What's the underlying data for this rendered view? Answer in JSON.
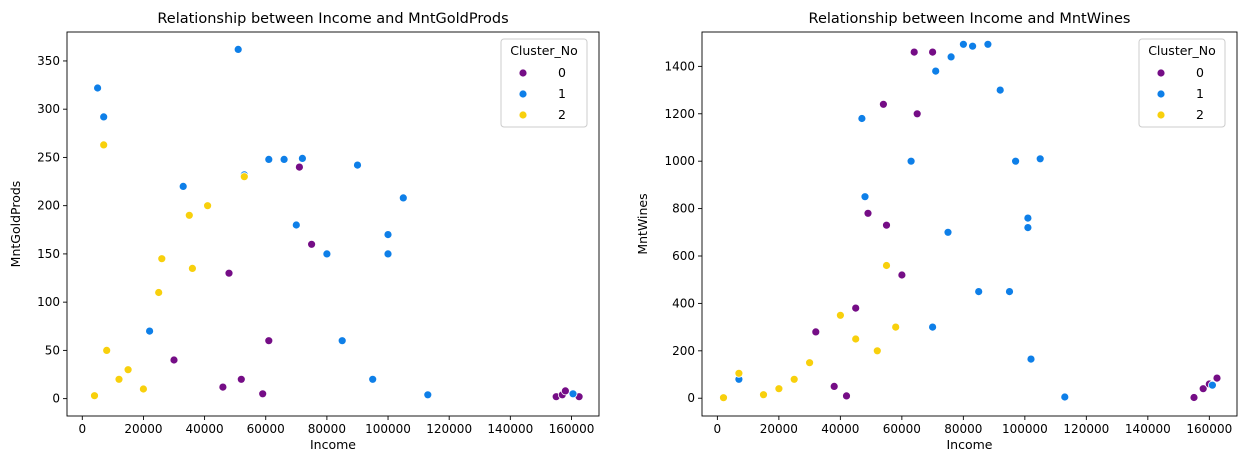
{
  "chart_data": [
    {
      "type": "scatter",
      "title": "Relationship between Income and MntGoldProds",
      "xlabel": "Income",
      "ylabel": "MntGoldProds",
      "xlim": [
        -5000,
        169000
      ],
      "ylim": [
        -18,
        380
      ],
      "xticks": [
        0,
        20000,
        40000,
        60000,
        80000,
        100000,
        120000,
        140000,
        160000
      ],
      "yticks": [
        0,
        50,
        100,
        150,
        200,
        250,
        300,
        350
      ],
      "legend": {
        "title": "Cluster_No",
        "placement": "top-right"
      },
      "series": [
        {
          "name": "0",
          "color": "#750d86",
          "points": [
            [
              155000,
              2
            ],
            [
              157000,
              4
            ],
            [
              158000,
              8
            ],
            [
              162500,
              2
            ],
            [
              71000,
              240
            ],
            [
              48000,
              130
            ],
            [
              46000,
              12
            ],
            [
              52000,
              20
            ],
            [
              59000,
              5
            ],
            [
              61000,
              60
            ],
            [
              75000,
              160
            ],
            [
              30000,
              40
            ]
          ]
        },
        {
          "name": "1",
          "color": "#0e7fe8",
          "points": [
            [
              51000,
              362
            ],
            [
              5000,
              322
            ],
            [
              7000,
              292
            ],
            [
              61000,
              248
            ],
            [
              66000,
              248
            ],
            [
              72000,
              249
            ],
            [
              90000,
              242
            ],
            [
              105000,
              208
            ],
            [
              100000,
              170
            ],
            [
              100000,
              150
            ],
            [
              113000,
              4
            ],
            [
              160500,
              5
            ],
            [
              33000,
              220
            ],
            [
              53000,
              232
            ],
            [
              22000,
              70
            ],
            [
              70000,
              180
            ],
            [
              80000,
              150
            ],
            [
              85000,
              60
            ],
            [
              95000,
              20
            ]
          ]
        },
        {
          "name": "2",
          "color": "#f8d00c",
          "points": [
            [
              7000,
              263
            ],
            [
              53000,
              230
            ],
            [
              35000,
              190
            ],
            [
              41000,
              200
            ],
            [
              26000,
              145
            ],
            [
              36000,
              135
            ],
            [
              15000,
              30
            ],
            [
              8000,
              50
            ],
            [
              25000,
              110
            ],
            [
              4000,
              3
            ],
            [
              12000,
              20
            ],
            [
              20000,
              10
            ]
          ]
        }
      ]
    },
    {
      "type": "scatter",
      "title": "Relationship between Income and MntWines",
      "xlabel": "Income",
      "ylabel": "MntWines",
      "xlim": [
        -5000,
        169000
      ],
      "ylim": [
        -75,
        1545
      ],
      "xticks": [
        0,
        20000,
        40000,
        60000,
        80000,
        100000,
        120000,
        140000,
        160000
      ],
      "yticks": [
        0,
        200,
        400,
        600,
        800,
        1000,
        1200,
        1400
      ],
      "legend": {
        "title": "Cluster_No",
        "placement": "top-right"
      },
      "series": [
        {
          "name": "0",
          "color": "#750d86",
          "points": [
            [
              64000,
              1460
            ],
            [
              70000,
              1460
            ],
            [
              54000,
              1240
            ],
            [
              65000,
              1200
            ],
            [
              49000,
              780
            ],
            [
              55000,
              730
            ],
            [
              32000,
              280
            ],
            [
              45000,
              380
            ],
            [
              60000,
              520
            ],
            [
              155000,
              3
            ],
            [
              158000,
              40
            ],
            [
              160000,
              60
            ],
            [
              162500,
              85
            ],
            [
              38000,
              50
            ],
            [
              42000,
              10
            ]
          ]
        },
        {
          "name": "1",
          "color": "#0e7fe8",
          "points": [
            [
              80000,
              1493
            ],
            [
              83000,
              1485
            ],
            [
              88000,
              1493
            ],
            [
              76000,
              1440
            ],
            [
              92000,
              1300
            ],
            [
              71000,
              1380
            ],
            [
              47000,
              1180
            ],
            [
              97000,
              1000
            ],
            [
              105000,
              1010
            ],
            [
              101000,
              760
            ],
            [
              101000,
              720
            ],
            [
              113000,
              5
            ],
            [
              102000,
              165
            ],
            [
              161000,
              55
            ],
            [
              7000,
              80
            ],
            [
              48000,
              850
            ],
            [
              63000,
              1000
            ],
            [
              75000,
              700
            ],
            [
              70000,
              300
            ],
            [
              85000,
              450
            ],
            [
              95000,
              450
            ]
          ]
        },
        {
          "name": "2",
          "color": "#f8d00c",
          "points": [
            [
              7000,
              105
            ],
            [
              40000,
              350
            ],
            [
              55000,
              560
            ],
            [
              58000,
              300
            ],
            [
              2000,
              2
            ],
            [
              15000,
              15
            ],
            [
              25000,
              80
            ],
            [
              30000,
              150
            ],
            [
              45000,
              250
            ],
            [
              52000,
              200
            ],
            [
              20000,
              40
            ]
          ]
        }
      ]
    }
  ]
}
